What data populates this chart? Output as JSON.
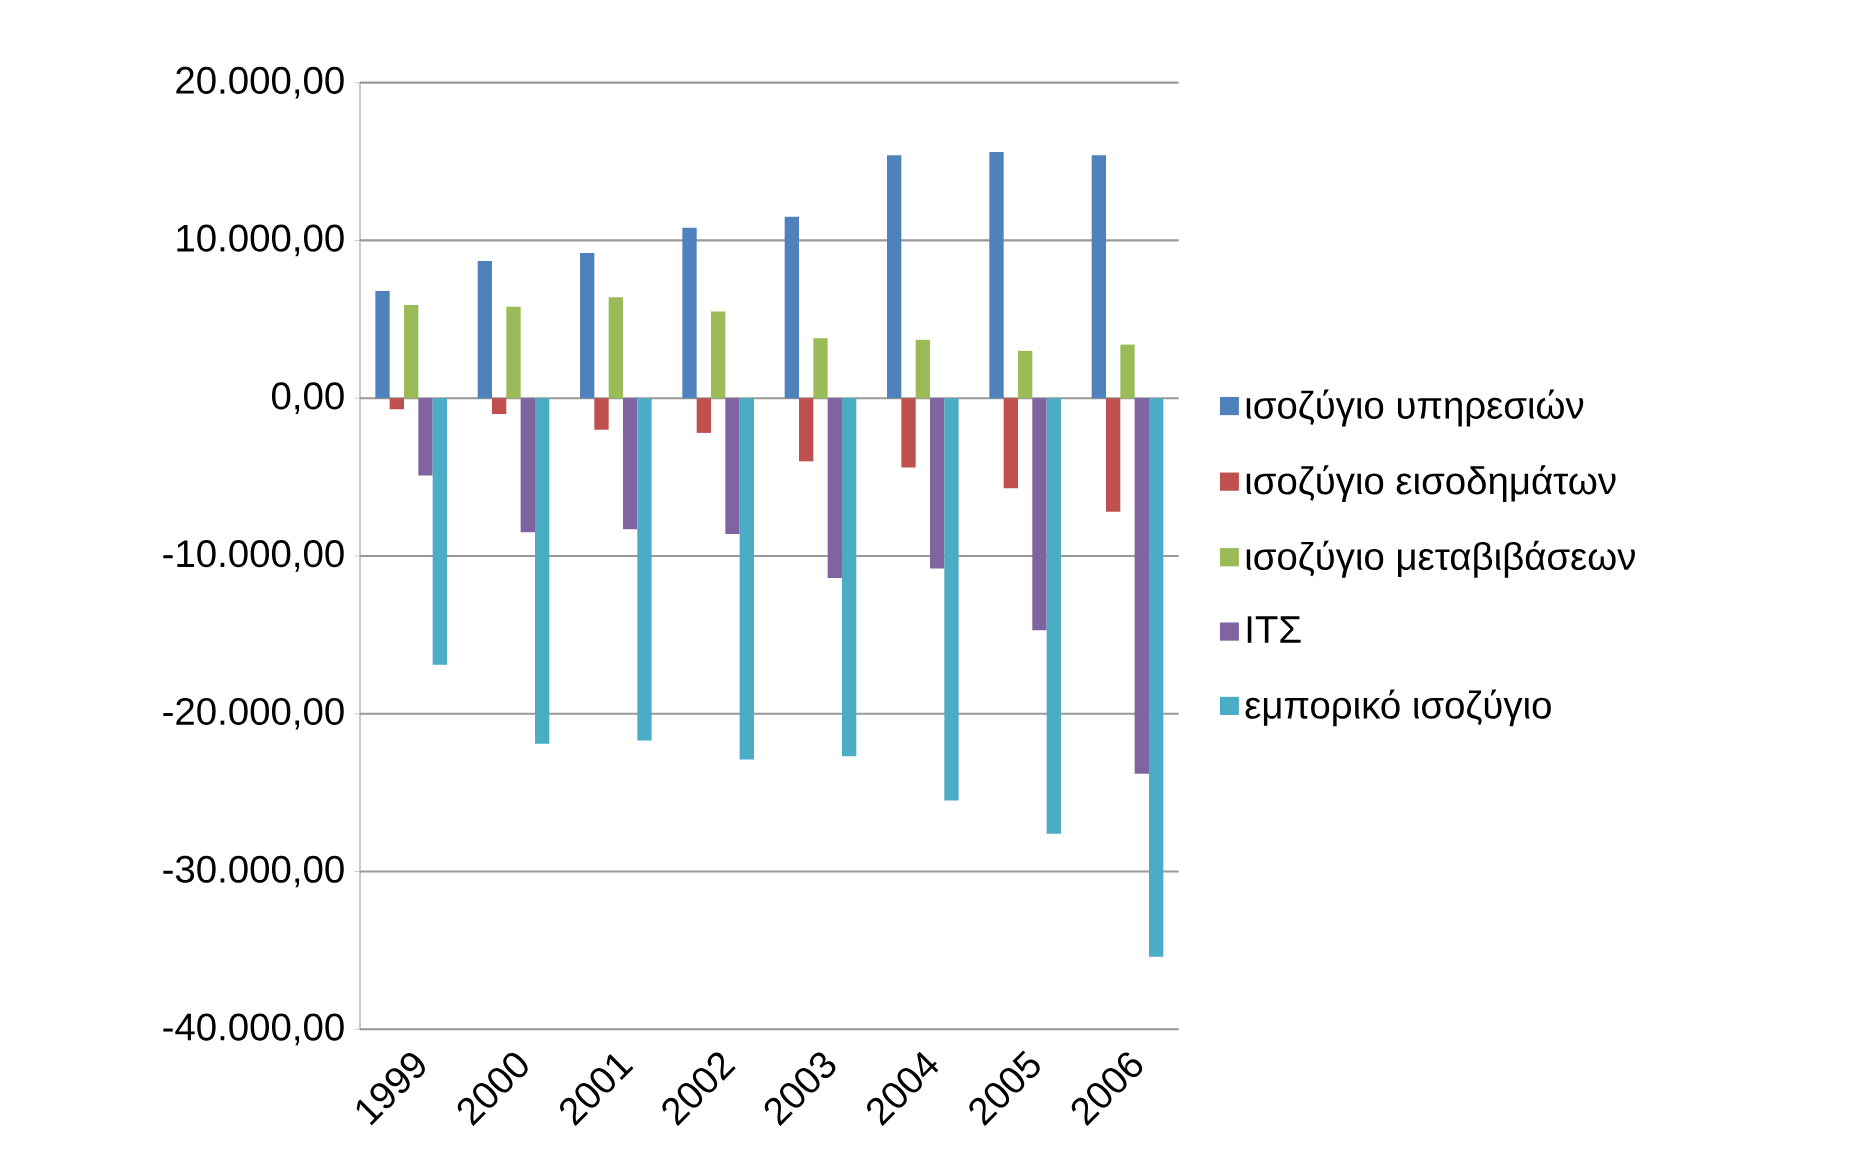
{
  "chart_data": {
    "type": "bar",
    "categories": [
      "1999",
      "2000",
      "2001",
      "2002",
      "2003",
      "2004",
      "2005",
      "2006"
    ],
    "series": [
      {
        "name": "ισοζύγιο υπηρεσιών",
        "color": "#4f81bd",
        "values": [
          6800,
          8700,
          9200,
          10800,
          11500,
          15400,
          15600,
          15400
        ]
      },
      {
        "name": "ισοζύγιο εισοδημάτων",
        "color": "#c0504d",
        "values": [
          -700,
          -1000,
          -2000,
          -2200,
          -4000,
          -4400,
          -5700,
          -7200
        ]
      },
      {
        "name": "ισοζύγιο μεταβιβάσεων",
        "color": "#9bbb59",
        "values": [
          5900,
          5800,
          6400,
          5500,
          3800,
          3700,
          3000,
          3400
        ]
      },
      {
        "name": "ΙΤΣ",
        "color": "#8064a2",
        "values": [
          -4900,
          -8500,
          -8300,
          -8600,
          -11400,
          -10800,
          -14700,
          -23800
        ]
      },
      {
        "name": "εμπορικό ισοζύγιο",
        "color": "#4bacc6",
        "values": [
          -16900,
          -21900,
          -21700,
          -22900,
          -22700,
          -25500,
          -27600,
          -35400
        ]
      }
    ],
    "ylim": [
      -40000,
      20000
    ],
    "yticks": [
      {
        "value": -40000,
        "label": "-40.000,00"
      },
      {
        "value": -30000,
        "label": "-30.000,00"
      },
      {
        "value": -20000,
        "label": "-20.000,00"
      },
      {
        "value": -10000,
        "label": "-10.000,00"
      },
      {
        "value": 0,
        "label": "0,00"
      },
      {
        "value": 10000,
        "label": "10.000,00"
      },
      {
        "value": 20000,
        "label": "20.000,00"
      }
    ],
    "grid": "y",
    "legend": "right"
  }
}
